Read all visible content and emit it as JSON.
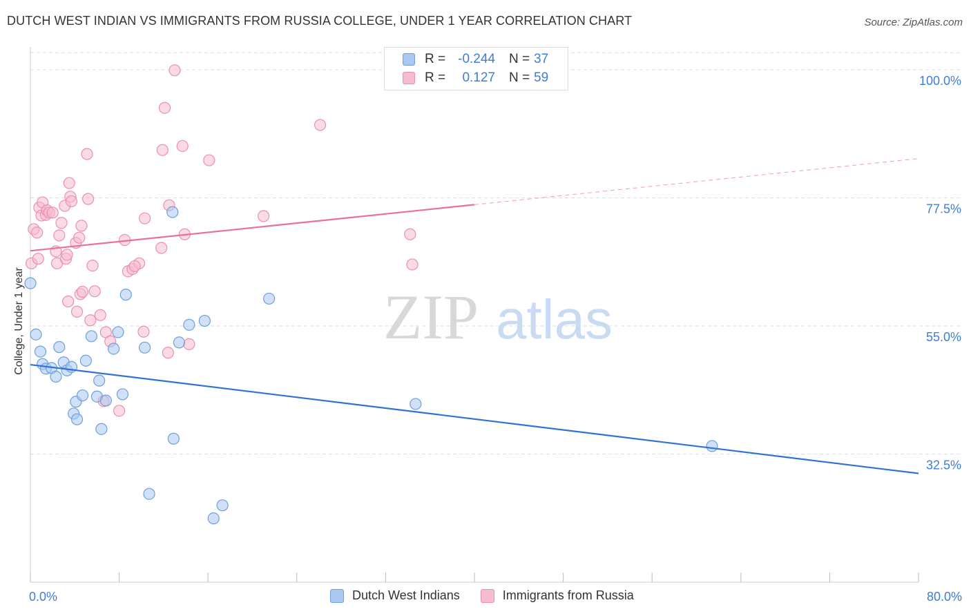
{
  "title": "DUTCH WEST INDIAN VS IMMIGRANTS FROM RUSSIA COLLEGE, UNDER 1 YEAR CORRELATION CHART",
  "source": "Source: ZipAtlas.com",
  "watermark": {
    "zip": "ZIP",
    "atlas": "atlas"
  },
  "colors": {
    "blue_fill": "#aac8f0",
    "blue_stroke": "#6e9fdc",
    "blue_line": "#2f72d4",
    "pink_fill": "#f5bcd0",
    "pink_stroke": "#eb8fae",
    "pink_line": "#e8709a",
    "axis_label": "#3d7dd8",
    "grid": "#dddddd"
  },
  "legend": {
    "r_label": "R =",
    "n_label": "N =",
    "rows": [
      {
        "r": "-0.244",
        "n": "37"
      },
      {
        "r": "0.127",
        "n": "59"
      }
    ]
  },
  "chart_data": {
    "type": "scatter",
    "title": "DUTCH WEST INDIAN VS IMMIGRANTS FROM RUSSIA COLLEGE, UNDER 1 YEAR CORRELATION CHART",
    "xlabel": "",
    "ylabel": "College, Under 1 year",
    "xlim": [
      0,
      80
    ],
    "ylim": [
      10,
      104
    ],
    "x_tick_labels": [
      "0.0%",
      "80.0%"
    ],
    "y_ticks": [
      {
        "value": 32.5,
        "label": "32.5%"
      },
      {
        "value": 55.0,
        "label": "55.0%"
      },
      {
        "value": 77.5,
        "label": "77.5%"
      },
      {
        "value": 100.0,
        "label": "100.0%"
      }
    ],
    "series": [
      {
        "name": "Dutch West Indians",
        "r": -0.244,
        "n": 37,
        "trend": {
          "x": [
            0,
            80
          ],
          "y": [
            48.2,
            29.1
          ],
          "dashed_from": null
        },
        "points": [
          [
            0.0,
            62.5
          ],
          [
            0.5,
            53.5
          ],
          [
            0.9,
            50.5
          ],
          [
            1.1,
            48.3
          ],
          [
            1.4,
            47.5
          ],
          [
            1.9,
            47.6
          ],
          [
            2.3,
            46.1
          ],
          [
            2.6,
            51.3
          ],
          [
            3.0,
            48.6
          ],
          [
            3.3,
            47.2
          ],
          [
            3.7,
            47.8
          ],
          [
            4.1,
            41.7
          ],
          [
            3.9,
            39.6
          ],
          [
            4.2,
            38.6
          ],
          [
            4.7,
            42.8
          ],
          [
            5.0,
            48.9
          ],
          [
            5.5,
            53.2
          ],
          [
            6.0,
            42.6
          ],
          [
            6.2,
            45.4
          ],
          [
            6.4,
            36.9
          ],
          [
            6.8,
            41.9
          ],
          [
            7.5,
            51.0
          ],
          [
            7.9,
            53.9
          ],
          [
            8.3,
            43.0
          ],
          [
            8.6,
            60.5
          ],
          [
            10.3,
            51.2
          ],
          [
            10.7,
            25.5
          ],
          [
            12.9,
            35.2
          ],
          [
            13.4,
            52.1
          ],
          [
            14.3,
            55.2
          ],
          [
            16.5,
            21.2
          ],
          [
            15.7,
            55.9
          ],
          [
            17.3,
            23.5
          ],
          [
            21.5,
            59.8
          ],
          [
            34.7,
            41.3
          ],
          [
            61.4,
            33.9
          ],
          [
            12.8,
            75.0
          ]
        ]
      },
      {
        "name": "Immigrants from Russia",
        "r": 0.127,
        "n": 59,
        "trend": {
          "x": [
            0,
            80
          ],
          "y": [
            68.2,
            84.4
          ],
          "dashed_from": 40
        },
        "points": [
          [
            0.1,
            66.0
          ],
          [
            0.3,
            72.0
          ],
          [
            0.6,
            71.4
          ],
          [
            0.7,
            66.8
          ],
          [
            0.8,
            75.8
          ],
          [
            1.0,
            74.4
          ],
          [
            1.1,
            76.7
          ],
          [
            1.4,
            74.5
          ],
          [
            1.5,
            75.3
          ],
          [
            1.7,
            74.9
          ],
          [
            2.3,
            68.1
          ],
          [
            2.4,
            66.0
          ],
          [
            2.6,
            70.9
          ],
          [
            2.8,
            73.1
          ],
          [
            3.2,
            66.8
          ],
          [
            3.1,
            76.1
          ],
          [
            3.4,
            59.3
          ],
          [
            3.5,
            80.1
          ],
          [
            3.6,
            77.7
          ],
          [
            3.7,
            76.9
          ],
          [
            4.1,
            69.6
          ],
          [
            4.2,
            57.5
          ],
          [
            4.4,
            70.5
          ],
          [
            4.5,
            60.6
          ],
          [
            4.6,
            72.6
          ],
          [
            4.7,
            61.0
          ],
          [
            5.1,
            85.2
          ],
          [
            5.2,
            77.3
          ],
          [
            5.4,
            56.0
          ],
          [
            5.6,
            65.6
          ],
          [
            5.8,
            61.1
          ],
          [
            6.3,
            56.9
          ],
          [
            6.6,
            41.8
          ],
          [
            6.8,
            53.9
          ],
          [
            7.2,
            52.3
          ],
          [
            8.0,
            40.1
          ],
          [
            8.5,
            70.1
          ],
          [
            8.8,
            64.6
          ],
          [
            9.2,
            65.0
          ],
          [
            9.8,
            66.0
          ],
          [
            10.2,
            54.0
          ],
          [
            10.3,
            73.9
          ],
          [
            11.8,
            68.7
          ],
          [
            11.9,
            85.9
          ],
          [
            12.1,
            93.3
          ],
          [
            12.4,
            50.3
          ],
          [
            12.5,
            76.2
          ],
          [
            13.0,
            99.9
          ],
          [
            13.7,
            86.6
          ],
          [
            13.9,
            71.1
          ],
          [
            14.3,
            51.8
          ],
          [
            16.1,
            84.1
          ],
          [
            21.0,
            74.3
          ],
          [
            34.2,
            71.1
          ],
          [
            34.4,
            65.8
          ],
          [
            26.1,
            90.3
          ],
          [
            9.4,
            65.5
          ],
          [
            2.0,
            74.9
          ],
          [
            3.3,
            67.5
          ]
        ]
      }
    ]
  },
  "bottom_legend": [
    "Dutch West Indians",
    "Immigrants from Russia"
  ]
}
